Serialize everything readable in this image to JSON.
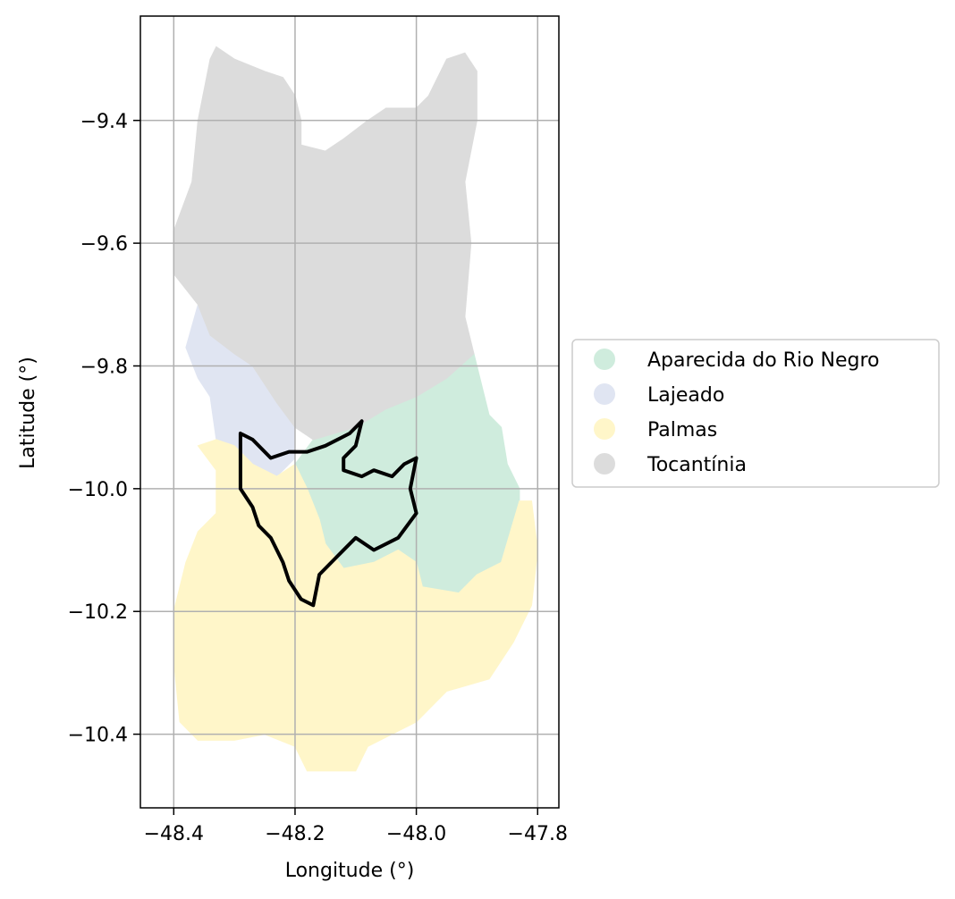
{
  "chart_data": {
    "type": "choropleth-map",
    "xlabel": "Longitude (°)",
    "ylabel": "Latitude (°)",
    "xlim": [
      -48.455,
      -47.765
    ],
    "ylim": [
      -10.52,
      -9.23
    ],
    "grid": true,
    "legend_placement": "center-right, outside plot",
    "x_ticks": [
      -48.4,
      -48.2,
      -48.0,
      -47.8
    ],
    "x_tick_labels": [
      "−48.4",
      "−48.2",
      "−48.0",
      "−47.8"
    ],
    "y_ticks": [
      -9.4,
      -9.6,
      -9.8,
      -10.0,
      -10.2,
      -10.4
    ],
    "y_tick_labels": [
      "−9.4",
      "−9.6",
      "−9.8",
      "−10.0",
      "−10.2",
      "−10.4"
    ],
    "regions": [
      {
        "name": "Aparecida do Rio Negro",
        "color": "#cfecdd",
        "polygon": [
          [
            -47.905,
            -9.78
          ],
          [
            -47.895,
            -9.82
          ],
          [
            -47.88,
            -9.88
          ],
          [
            -47.86,
            -9.9
          ],
          [
            -47.85,
            -9.96
          ],
          [
            -47.83,
            -10.0
          ],
          [
            -47.83,
            -10.08
          ],
          [
            -47.86,
            -10.12
          ],
          [
            -47.9,
            -10.14
          ],
          [
            -47.93,
            -10.17
          ],
          [
            -47.99,
            -10.16
          ],
          [
            -48.0,
            -10.12
          ],
          [
            -48.03,
            -10.1
          ],
          [
            -48.07,
            -10.12
          ],
          [
            -48.12,
            -10.13
          ],
          [
            -48.15,
            -10.09
          ],
          [
            -48.16,
            -10.05
          ],
          [
            -48.18,
            -10.0
          ],
          [
            -48.2,
            -9.96
          ],
          [
            -48.17,
            -9.92
          ],
          [
            -48.1,
            -9.9
          ],
          [
            -48.05,
            -9.87
          ],
          [
            -48.0,
            -9.85
          ],
          [
            -47.95,
            -9.82
          ]
        ]
      },
      {
        "name": "Lajeado",
        "color": "#e0e5f2",
        "polygon": [
          [
            -48.36,
            -9.7
          ],
          [
            -48.34,
            -9.75
          ],
          [
            -48.3,
            -9.78
          ],
          [
            -48.27,
            -9.8
          ],
          [
            -48.23,
            -9.86
          ],
          [
            -48.2,
            -9.9
          ],
          [
            -48.2,
            -9.95
          ],
          [
            -48.23,
            -9.98
          ],
          [
            -48.27,
            -9.96
          ],
          [
            -48.3,
            -9.93
          ],
          [
            -48.33,
            -9.92
          ],
          [
            -48.34,
            -9.85
          ],
          [
            -48.36,
            -9.82
          ],
          [
            -48.38,
            -9.77
          ]
        ]
      },
      {
        "name": "Palmas",
        "color": "#fff6c9",
        "polygon": [
          [
            -48.36,
            -9.93
          ],
          [
            -48.33,
            -9.97
          ],
          [
            -48.33,
            -10.04
          ],
          [
            -48.36,
            -10.07
          ],
          [
            -48.38,
            -10.12
          ],
          [
            -48.4,
            -10.2
          ],
          [
            -48.4,
            -10.28
          ],
          [
            -48.39,
            -10.38
          ],
          [
            -48.36,
            -10.41
          ],
          [
            -48.3,
            -10.41
          ],
          [
            -48.25,
            -10.4
          ],
          [
            -48.2,
            -10.42
          ],
          [
            -48.18,
            -10.46
          ],
          [
            -48.1,
            -10.46
          ],
          [
            -48.08,
            -10.42
          ],
          [
            -48.0,
            -10.38
          ],
          [
            -47.95,
            -10.33
          ],
          [
            -47.88,
            -10.31
          ],
          [
            -47.84,
            -10.25
          ],
          [
            -47.81,
            -10.19
          ],
          [
            -47.8,
            -10.1
          ],
          [
            -47.81,
            -10.02
          ],
          [
            -47.83,
            -10.02
          ],
          [
            -47.86,
            -10.12
          ],
          [
            -47.9,
            -10.14
          ],
          [
            -47.93,
            -10.17
          ],
          [
            -47.99,
            -10.16
          ],
          [
            -48.0,
            -10.12
          ],
          [
            -48.03,
            -10.1
          ],
          [
            -48.07,
            -10.12
          ],
          [
            -48.12,
            -10.13
          ],
          [
            -48.15,
            -10.09
          ],
          [
            -48.16,
            -10.05
          ],
          [
            -48.18,
            -10.0
          ],
          [
            -48.2,
            -9.96
          ],
          [
            -48.23,
            -9.98
          ],
          [
            -48.27,
            -9.96
          ],
          [
            -48.3,
            -9.93
          ],
          [
            -48.33,
            -9.92
          ]
        ]
      },
      {
        "name": "Tocantínia",
        "color": "#dcdcdc",
        "polygon": [
          [
            -48.33,
            -9.28
          ],
          [
            -48.3,
            -9.3
          ],
          [
            -48.25,
            -9.32
          ],
          [
            -48.22,
            -9.33
          ],
          [
            -48.2,
            -9.36
          ],
          [
            -48.19,
            -9.4
          ],
          [
            -48.19,
            -9.44
          ],
          [
            -48.15,
            -9.45
          ],
          [
            -48.12,
            -9.43
          ],
          [
            -48.08,
            -9.4
          ],
          [
            -48.05,
            -9.38
          ],
          [
            -48.0,
            -9.38
          ],
          [
            -47.98,
            -9.36
          ],
          [
            -47.95,
            -9.3
          ],
          [
            -47.92,
            -9.29
          ],
          [
            -47.9,
            -9.32
          ],
          [
            -47.9,
            -9.4
          ],
          [
            -47.92,
            -9.5
          ],
          [
            -47.91,
            -9.6
          ],
          [
            -47.92,
            -9.72
          ],
          [
            -47.905,
            -9.78
          ],
          [
            -47.95,
            -9.82
          ],
          [
            -48.0,
            -9.85
          ],
          [
            -48.05,
            -9.87
          ],
          [
            -48.1,
            -9.9
          ],
          [
            -48.17,
            -9.92
          ],
          [
            -48.2,
            -9.9
          ],
          [
            -48.23,
            -9.86
          ],
          [
            -48.27,
            -9.8
          ],
          [
            -48.3,
            -9.78
          ],
          [
            -48.34,
            -9.75
          ],
          [
            -48.36,
            -9.7
          ],
          [
            -48.4,
            -9.65
          ],
          [
            -48.4,
            -9.58
          ],
          [
            -48.37,
            -9.5
          ],
          [
            -48.36,
            -9.4
          ],
          [
            -48.34,
            -9.3
          ]
        ]
      }
    ],
    "outline": {
      "color": "#000000",
      "polyline": [
        [
          -48.29,
          -9.91
        ],
        [
          -48.27,
          -9.92
        ],
        [
          -48.24,
          -9.95
        ],
        [
          -48.21,
          -9.94
        ],
        [
          -48.18,
          -9.94
        ],
        [
          -48.15,
          -9.93
        ],
        [
          -48.11,
          -9.91
        ],
        [
          -48.09,
          -9.89
        ],
        [
          -48.1,
          -9.93
        ],
        [
          -48.12,
          -9.95
        ],
        [
          -48.12,
          -9.97
        ],
        [
          -48.09,
          -9.98
        ],
        [
          -48.07,
          -9.97
        ],
        [
          -48.04,
          -9.98
        ],
        [
          -48.02,
          -9.96
        ],
        [
          -48.0,
          -9.95
        ],
        [
          -48.01,
          -10.0
        ],
        [
          -48.0,
          -10.04
        ],
        [
          -48.03,
          -10.08
        ],
        [
          -48.07,
          -10.1
        ],
        [
          -48.1,
          -10.08
        ],
        [
          -48.13,
          -10.11
        ],
        [
          -48.16,
          -10.14
        ],
        [
          -48.17,
          -10.19
        ],
        [
          -48.19,
          -10.18
        ],
        [
          -48.21,
          -10.15
        ],
        [
          -48.22,
          -10.12
        ],
        [
          -48.24,
          -10.08
        ],
        [
          -48.26,
          -10.06
        ],
        [
          -48.27,
          -10.03
        ],
        [
          -48.29,
          -10.0
        ],
        [
          -48.29,
          -9.96
        ],
        [
          -48.29,
          -9.91
        ]
      ]
    },
    "legend": [
      {
        "label": "Aparecida do Rio Negro",
        "color": "#cfecdd"
      },
      {
        "label": "Lajeado",
        "color": "#e0e5f2"
      },
      {
        "label": "Palmas",
        "color": "#fff6c9"
      },
      {
        "label": "Tocantínia",
        "color": "#dcdcdc"
      }
    ]
  }
}
